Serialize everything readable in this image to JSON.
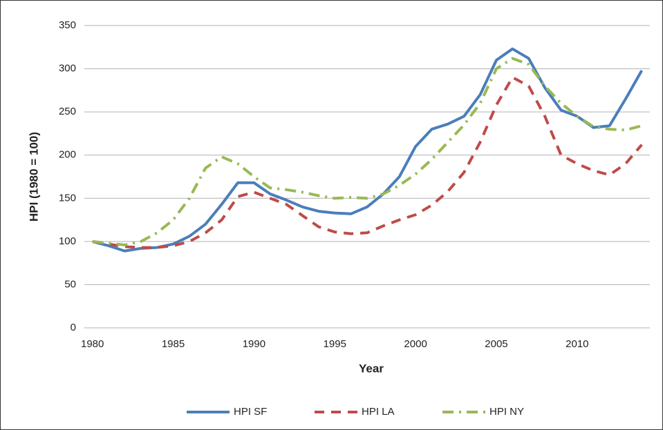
{
  "chart_data": {
    "type": "line",
    "y_label": "HPI (1980 = 100)",
    "x_label": "Year",
    "categories": [
      "1980",
      null,
      null,
      null,
      null,
      "1985",
      null,
      null,
      null,
      null,
      "1990",
      null,
      null,
      null,
      null,
      "1995",
      null,
      null,
      null,
      null,
      "2000",
      null,
      null,
      null,
      null,
      "2005",
      null,
      null,
      null,
      null,
      "2010",
      null,
      null,
      null,
      null
    ],
    "series": [
      {
        "name": "HPI SF",
        "color": "#4a7ebb",
        "dash": "solid",
        "values": [
          100,
          95,
          89,
          92,
          93,
          97,
          106,
          120,
          143,
          168,
          168,
          155,
          148,
          140,
          135,
          133,
          132,
          140,
          155,
          175,
          210,
          230,
          236,
          245,
          270,
          310,
          323,
          312,
          278,
          252,
          245,
          232,
          234,
          265,
          298
        ]
      },
      {
        "name": "HPI LA",
        "color": "#be4b48",
        "dash": "dashed",
        "values": [
          100,
          97,
          94,
          93,
          93,
          95,
          100,
          110,
          125,
          152,
          157,
          150,
          143,
          130,
          117,
          111,
          109,
          110,
          118,
          125,
          131,
          142,
          158,
          180,
          215,
          258,
          290,
          280,
          245,
          200,
          190,
          182,
          177,
          190,
          212
        ]
      },
      {
        "name": "HPI NY",
        "color": "#98b954",
        "dash": "dashdot",
        "values": [
          100,
          98,
          96,
          100,
          110,
          125,
          150,
          185,
          198,
          190,
          175,
          162,
          160,
          157,
          153,
          150,
          151,
          150,
          155,
          165,
          178,
          195,
          215,
          235,
          260,
          300,
          312,
          305,
          280,
          260,
          245,
          233,
          230,
          229,
          234
        ]
      }
    ],
    "ylim": [
      0,
      350
    ],
    "yticks": [
      0,
      50,
      100,
      150,
      200,
      250,
      300,
      350
    ],
    "grid": true,
    "legend": "bottom"
  }
}
